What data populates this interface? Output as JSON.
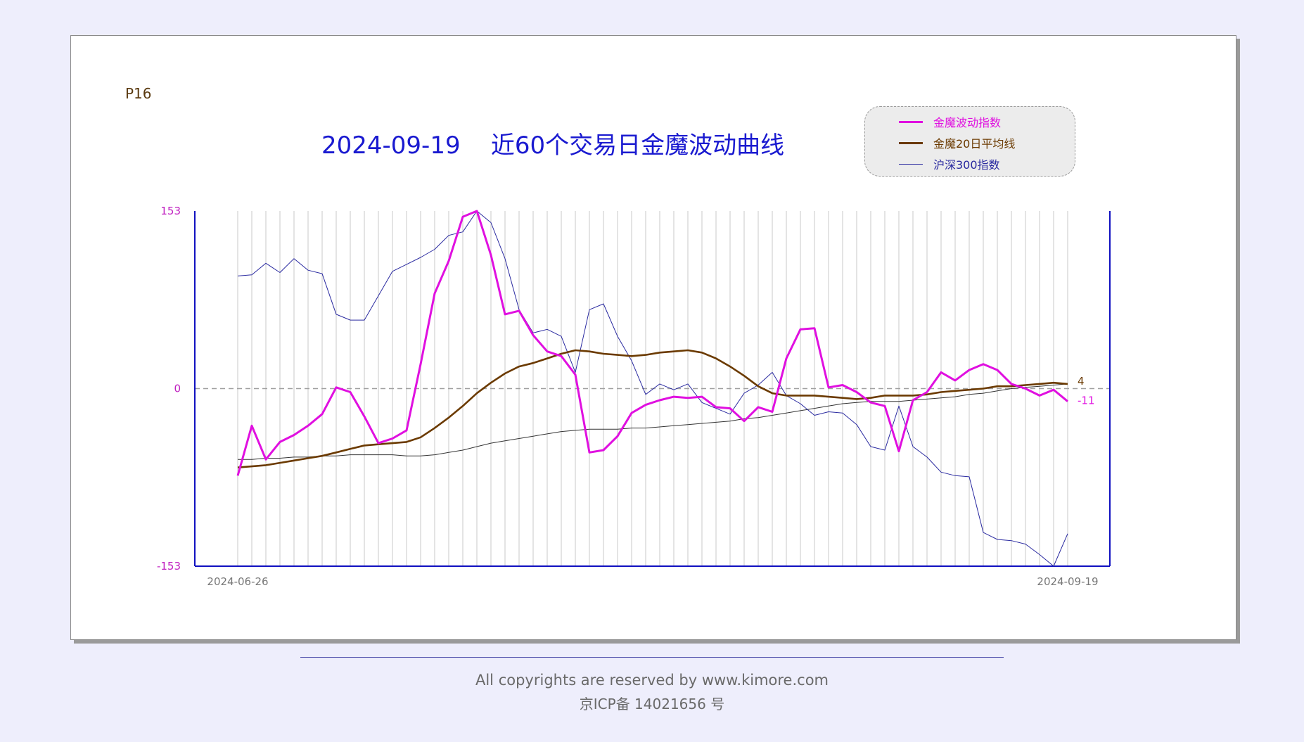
{
  "page_code": "P16",
  "title": "2024-09-19    近60个交易日金魔波动曲线",
  "footer": {
    "copyright": "All copyrights are reserved by www.kimore.com",
    "icp": "京ICP备 14021656 号"
  },
  "colors": {
    "jinmo": "#e010e0",
    "ma20": "#6b3a00",
    "hs300": "#2a2aa0",
    "long_ma": "#333333",
    "axis": "#1010c0"
  },
  "chart_data": {
    "type": "line",
    "title": "2024-09-19    近60个交易日金魔波动曲线",
    "ylim": [
      -153,
      153
    ],
    "y_tick_labels": [
      "153",
      "0",
      "-153"
    ],
    "x_tick_labels": [
      "2024-06-26",
      "2024-09-19"
    ],
    "zero_line": "dashed",
    "grid": "vertical lines per trading day",
    "legend_position": "top-right",
    "end_labels": {
      "ma20": "4",
      "jinmo": "-11"
    },
    "series": [
      {
        "name": "金魔波动指数",
        "key": "jinmo",
        "values": [
          -75,
          -32,
          -61,
          -46,
          -40,
          -32,
          -22,
          1,
          -3,
          -24,
          -47,
          -43,
          -36,
          21,
          82,
          110,
          148,
          153,
          115,
          64,
          67,
          46,
          32,
          28,
          12,
          -55,
          -53,
          -41,
          -21,
          -14,
          -10,
          -7,
          -8,
          -7,
          -16,
          -17,
          -28,
          -16,
          -20,
          26,
          51,
          52,
          1,
          3,
          -3,
          -12,
          -15,
          -54,
          -10,
          -3,
          14,
          7,
          16,
          21,
          16,
          4,
          0,
          -6,
          -1,
          -11
        ]
      },
      {
        "name": "金魔20日平均线",
        "key": "ma20",
        "values": [
          -68,
          -67,
          -66,
          -64,
          -62,
          -60,
          -58,
          -55,
          -52,
          -49,
          -48,
          -47,
          -46,
          -42,
          -34,
          -25,
          -15,
          -4,
          5,
          13,
          19,
          22,
          26,
          30,
          33,
          32,
          30,
          29,
          28,
          29,
          31,
          32,
          33,
          31,
          26,
          19,
          11,
          2,
          -4,
          -6,
          -6,
          -6,
          -7,
          -8,
          -9,
          -8,
          -6,
          -6,
          -6,
          -5,
          -3,
          -2,
          -1,
          0,
          2,
          2,
          3,
          4,
          5,
          4
        ]
      },
      {
        "name": "沪深300指数",
        "key": "hs300",
        "values": [
          97,
          98,
          108,
          100,
          112,
          102,
          99,
          64,
          59,
          59,
          80,
          101,
          107,
          113,
          120,
          132,
          135,
          153,
          143,
          112,
          68,
          48,
          51,
          45,
          14,
          68,
          73,
          45,
          24,
          -5,
          4,
          -1,
          4,
          -12,
          -17,
          -22,
          -4,
          3,
          14,
          -6,
          -13,
          -23,
          -20,
          -21,
          -31,
          -50,
          -53,
          -15,
          -50,
          -59,
          -72,
          -75,
          -76,
          -124,
          -130,
          -131,
          -134,
          -143,
          -153,
          -125
        ]
      },
      {
        "key": "long_ma",
        "values": [
          -61,
          -61,
          -60,
          -60,
          -59,
          -59,
          -58,
          -58,
          -57,
          -57,
          -57,
          -57,
          -58,
          -58,
          -57,
          -55,
          -53,
          -50,
          -47,
          -45,
          -43,
          -41,
          -39,
          -37,
          -36,
          -35,
          -35,
          -35,
          -34,
          -34,
          -33,
          -32,
          -31,
          -30,
          -29,
          -28,
          -26,
          -25,
          -23,
          -21,
          -19,
          -17,
          -15,
          -13,
          -12,
          -11,
          -11,
          -11,
          -10,
          -9,
          -8,
          -7,
          -5,
          -4,
          -2,
          0,
          1,
          2,
          3,
          4
        ]
      }
    ]
  }
}
